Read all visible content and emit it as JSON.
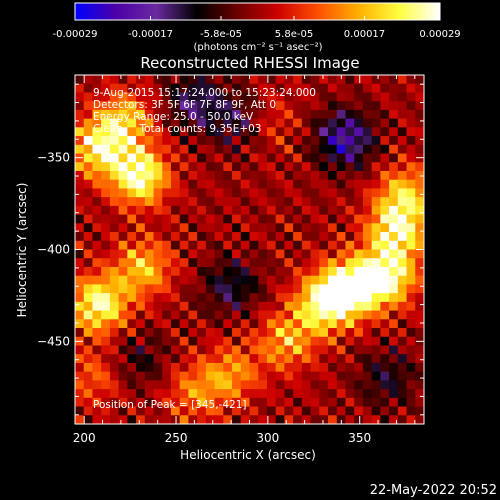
{
  "chart_data": {
    "type": "heatmap",
    "title": "Reconstructed RHESSI Image",
    "xlabel": "Heliocentric X (arcsec)",
    "ylabel": "Heliocentric Y (arcsec)",
    "xlim": [
      195,
      385
    ],
    "ylim": [
      -495,
      -305
    ],
    "x_ticks": [
      200,
      250,
      300,
      350
    ],
    "y_ticks": [
      -350,
      -400,
      -450
    ],
    "colorbar": {
      "tick_labels": [
        "-0.00029",
        "-0.00017",
        "-5.8e-05",
        "5.8e-05",
        "0.00017",
        "0.00029"
      ],
      "tick_values": [
        -0.00029,
        -0.00017,
        -5.8e-05,
        5.8e-05,
        0.00017,
        0.00029
      ],
      "range": [
        -0.00029,
        0.00029
      ],
      "units_label": "(photons cm⁻² s⁻¹ asec⁻²)",
      "colors": [
        "#0000ff",
        "#4b00a8",
        "#6a2aa0",
        "#000000",
        "#6a0000",
        "#cc0000",
        "#ff5000",
        "#ffb000",
        "#ffff40",
        "#ffffff"
      ]
    },
    "annotations": [
      "9-Aug-2015 15:17:24.000 to 15:23:24.000",
      "Detectors: 3F 5F 6F 7F 8F 9F, Att 0",
      "Energy Range: 25.0 - 50.0 keV",
      "Clean     Total counts: 9.35E+03"
    ],
    "peak_label": "Position of Peak = [345,-421]",
    "peak": [
      345,
      -421
    ],
    "sources": [
      {
        "x": 207,
        "y": -345,
        "amp": 0.00022
      },
      {
        "x": 230,
        "y": -360,
        "amp": 0.00028
      },
      {
        "x": 222,
        "y": -330,
        "amp": 0.00018
      },
      {
        "x": 208,
        "y": -430,
        "amp": 0.00026
      },
      {
        "x": 232,
        "y": -410,
        "amp": 0.00018
      },
      {
        "x": 345,
        "y": -421,
        "amp": 0.00029
      },
      {
        "x": 330,
        "y": -430,
        "amp": 0.00024
      },
      {
        "x": 365,
        "y": -415,
        "amp": 0.00026
      },
      {
        "x": 370,
        "y": -390,
        "amp": 0.00024
      },
      {
        "x": 375,
        "y": -370,
        "amp": 0.00018
      },
      {
        "x": 310,
        "y": -450,
        "amp": 0.00016
      },
      {
        "x": 280,
        "y": -468,
        "amp": 0.00014
      },
      {
        "x": 260,
        "y": -478,
        "amp": 0.00012
      },
      {
        "x": 300,
        "y": -330,
        "amp": 8e-05
      },
      {
        "x": 205,
        "y": -470,
        "amp": 0.0001
      },
      {
        "x": 280,
        "y": -420,
        "amp": -0.00012
      },
      {
        "x": 342,
        "y": -340,
        "amp": -0.0002
      },
      {
        "x": 285,
        "y": -330,
        "amp": -0.00012
      },
      {
        "x": 260,
        "y": -320,
        "amp": -0.00014
      },
      {
        "x": 230,
        "y": -460,
        "amp": -8e-05
      },
      {
        "x": 365,
        "y": -470,
        "amp": -0.0001
      }
    ]
  },
  "footer": {
    "timestamp": "22-May-2022 20:52"
  }
}
